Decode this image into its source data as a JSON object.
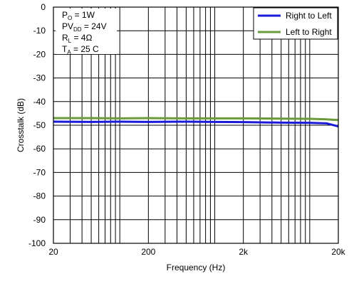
{
  "chart_data": {
    "type": "line",
    "xlabel": "Frequency (Hz)",
    "ylabel": "Crosstalk (dB)",
    "x_scale": "log",
    "xlim": [
      20,
      20000
    ],
    "ylim": [
      -100,
      0
    ],
    "grid": true,
    "x_ticks": [
      {
        "value": 20,
        "label": "20"
      },
      {
        "value": 200,
        "label": "200"
      },
      {
        "value": 2000,
        "label": "2k"
      },
      {
        "value": 20000,
        "label": "20k"
      }
    ],
    "y_ticks": [
      0,
      -10,
      -20,
      -30,
      -40,
      -50,
      -60,
      -70,
      -80,
      -90,
      -100
    ],
    "conditions": [
      {
        "main": "P",
        "sub": "O",
        "rest": " = 1W"
      },
      {
        "main": "PV",
        "sub": "DD",
        "rest": " = 24V"
      },
      {
        "main": "R",
        "sub": "L",
        "rest": " = 4Ω"
      },
      {
        "main": "T",
        "sub": "A",
        "rest": " = 25 C"
      }
    ],
    "legend_position": "top-right",
    "series": [
      {
        "name": "Right to Left",
        "color": "#1a1adb",
        "x": [
          20,
          50,
          100,
          200,
          500,
          1000,
          2000,
          5000,
          10000,
          15000,
          20000
        ],
        "y": [
          -48.5,
          -48.6,
          -48.5,
          -48.6,
          -48.5,
          -48.6,
          -48.7,
          -48.9,
          -49.0,
          -49.2,
          -50.5
        ]
      },
      {
        "name": "Left to Right",
        "color": "#6a9b3a",
        "x": [
          20,
          50,
          100,
          200,
          500,
          1000,
          2000,
          5000,
          10000,
          15000,
          20000
        ],
        "y": [
          -47.0,
          -47.0,
          -47.1,
          -47.0,
          -47.1,
          -47.1,
          -47.1,
          -47.2,
          -47.3,
          -47.5,
          -47.8
        ]
      }
    ]
  }
}
